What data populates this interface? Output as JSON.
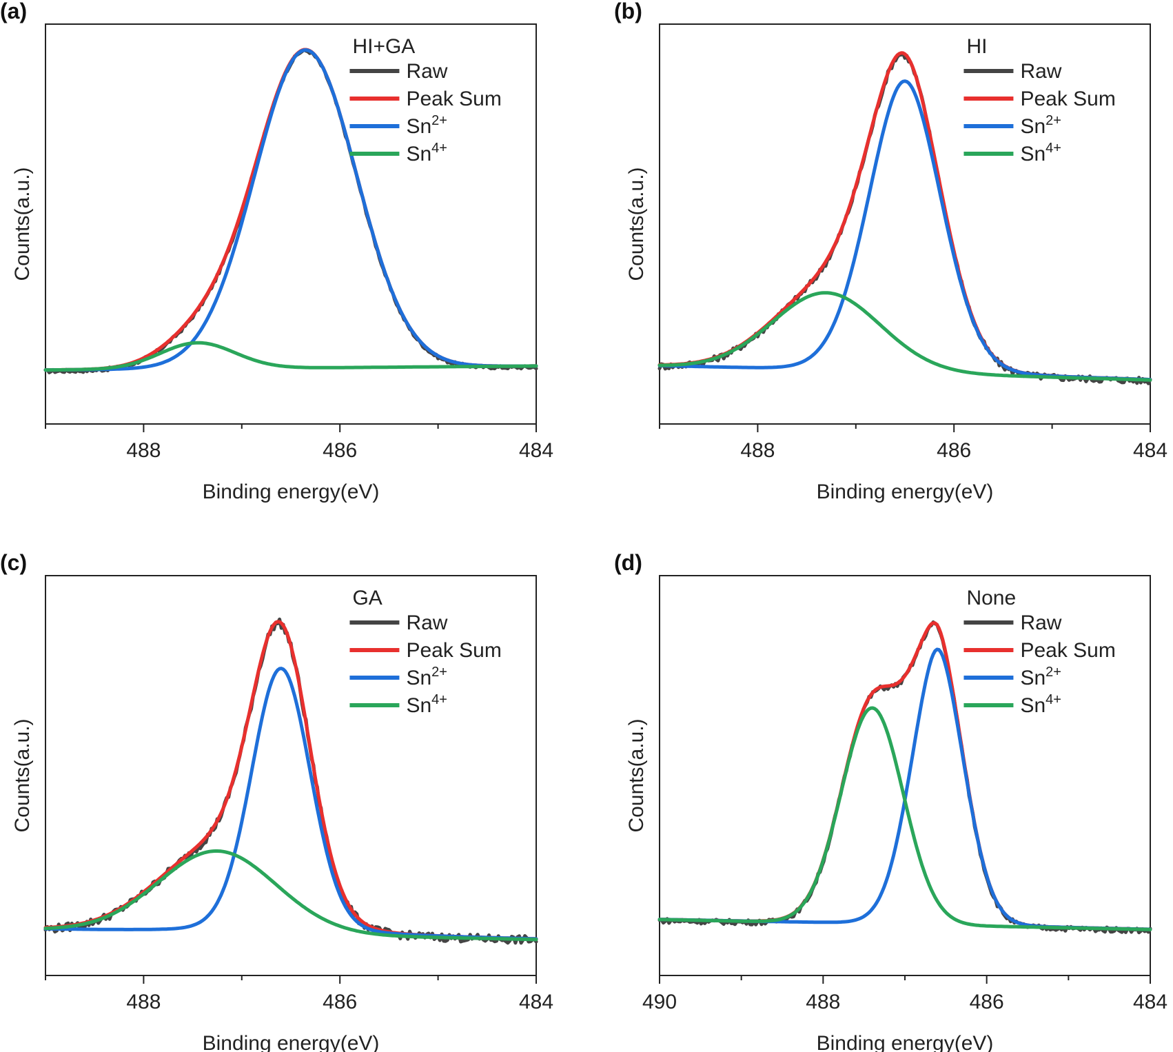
{
  "figure": {
    "xlabel": "Binding energy(eV)",
    "ylabel": "Counts(a.u.)"
  },
  "colors": {
    "raw": "#444444",
    "peak_sum": "#e8302e",
    "sn2": "#1e6fd9",
    "sn4": "#2aa65a"
  },
  "chart_data": [
    {
      "panel_label": "(a)",
      "type": "line",
      "title": "HI+GA",
      "xlabel": "Binding energy(eV)",
      "ylabel": "Counts(a.u.)",
      "x_reversed": true,
      "xlim": [
        489,
        484
      ],
      "ylim": [
        0,
        1
      ],
      "x_ticks": [
        488,
        486,
        484
      ],
      "x_tick_labels": [
        "488",
        "486",
        "484"
      ],
      "legend": [
        "Raw",
        "Peak Sum",
        "Sn2+",
        "Sn4+"
      ],
      "legend_display": [
        {
          "base": "Raw",
          "sup": ""
        },
        {
          "base": "Peak Sum",
          "sup": ""
        },
        {
          "base": "Sn",
          "sup": "2+"
        },
        {
          "base": "Sn",
          "sup": "4+"
        }
      ],
      "legend_placement": "top-right",
      "baseline": {
        "left": 0.135,
        "right": 0.145
      },
      "components": [
        {
          "name": "Sn2+",
          "center": 486.35,
          "height": 0.795,
          "sigma": 0.52,
          "gamma": 0.0,
          "tail": 0.0
        },
        {
          "name": "Sn4+",
          "center": 487.45,
          "height": 0.065,
          "sigma": 0.38,
          "gamma": 0.0,
          "tail": 0.0
        }
      ],
      "raw_noise": 0.004
    },
    {
      "panel_label": "(b)",
      "type": "line",
      "title": "HI",
      "xlabel": "Binding energy(eV)",
      "ylabel": "Counts(a.u.)",
      "x_reversed": true,
      "xlim": [
        489,
        484
      ],
      "ylim": [
        0,
        1
      ],
      "x_ticks": [
        488,
        486,
        484
      ],
      "x_tick_labels": [
        "488",
        "486",
        "484"
      ],
      "legend": [
        "Raw",
        "Peak Sum",
        "Sn2+",
        "Sn4+"
      ],
      "legend_display": [
        {
          "base": "Raw",
          "sup": ""
        },
        {
          "base": "Peak Sum",
          "sup": ""
        },
        {
          "base": "Sn",
          "sup": "2+"
        },
        {
          "base": "Sn",
          "sup": "4+"
        }
      ],
      "legend_placement": "top-right",
      "baseline": {
        "left": 0.145,
        "right": 0.11
      },
      "components": [
        {
          "name": "Sn2+",
          "center": 486.5,
          "height": 0.73,
          "sigma": 0.38,
          "gamma": 0.06,
          "tail": 0.0
        },
        {
          "name": "Sn4+",
          "center": 487.3,
          "height": 0.195,
          "sigma": 0.55,
          "gamma": 0.0,
          "tail": 0.0
        }
      ],
      "raw_noise": 0.008
    },
    {
      "panel_label": "(c)",
      "type": "line",
      "title": "GA",
      "xlabel": "Binding energy(eV)",
      "ylabel": "Counts(a.u.)",
      "x_reversed": true,
      "xlim": [
        489,
        484
      ],
      "ylim": [
        0,
        1
      ],
      "x_ticks": [
        488,
        486,
        484
      ],
      "x_tick_labels": [
        "488",
        "486",
        "484"
      ],
      "legend": [
        "Raw",
        "Peak Sum",
        "Sn2+",
        "Sn4+"
      ],
      "legend_display": [
        {
          "base": "Raw",
          "sup": ""
        },
        {
          "base": "Peak Sum",
          "sup": ""
        },
        {
          "base": "Sn",
          "sup": "2+"
        },
        {
          "base": "Sn",
          "sup": "4+"
        }
      ],
      "legend_placement": "top-right",
      "baseline": {
        "left": 0.115,
        "right": 0.09
      },
      "components": [
        {
          "name": "Sn2+",
          "center": 486.6,
          "height": 0.665,
          "sigma": 0.3,
          "gamma": 0.08,
          "tail": 0.0
        },
        {
          "name": "Sn4+",
          "center": 487.25,
          "height": 0.205,
          "sigma": 0.6,
          "gamma": 0.0,
          "tail": 0.0
        }
      ],
      "raw_noise": 0.01
    },
    {
      "panel_label": "(d)",
      "type": "line",
      "title": "None",
      "xlabel": "Binding energy(eV)",
      "ylabel": "Counts(a.u.)",
      "x_reversed": true,
      "xlim": [
        490,
        484
      ],
      "ylim": [
        0,
        1
      ],
      "x_ticks": [
        490,
        488,
        486,
        484
      ],
      "x_tick_labels": [
        "490",
        "488",
        "486",
        "484"
      ],
      "legend": [
        "Raw",
        "Peak Sum",
        "Sn2+",
        "Sn4+"
      ],
      "legend_display": [
        {
          "base": "Raw",
          "sup": ""
        },
        {
          "base": "Peak Sum",
          "sup": ""
        },
        {
          "base": "Sn",
          "sup": "2+"
        },
        {
          "base": "Sn",
          "sup": "4+"
        }
      ],
      "legend_placement": "top-right",
      "baseline": {
        "left": 0.14,
        "right": 0.115
      },
      "components": [
        {
          "name": "Sn2+",
          "center": 486.6,
          "height": 0.69,
          "sigma": 0.33,
          "gamma": 0.04,
          "tail": 0.0
        },
        {
          "name": "Sn4+",
          "center": 487.4,
          "height": 0.54,
          "sigma": 0.38,
          "gamma": 0.0,
          "tail": 0.0
        }
      ],
      "raw_noise": 0.006
    }
  ]
}
